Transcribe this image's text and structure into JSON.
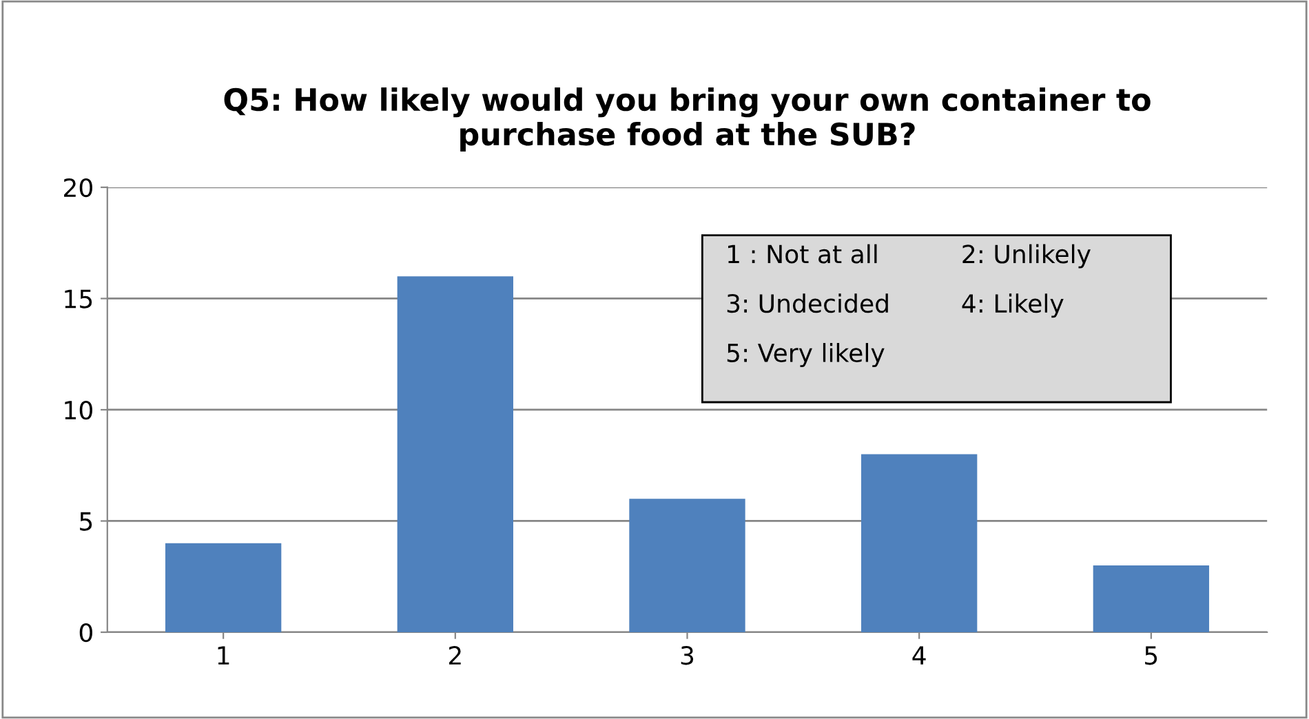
{
  "chart_data": {
    "type": "bar",
    "title": "Q5: How likely would you bring your own container to\npurchase food at the SUB?",
    "categories": [
      "1",
      "2",
      "3",
      "4",
      "5"
    ],
    "values": [
      4,
      16,
      6,
      8,
      3
    ],
    "color": "#4f81bd",
    "ylim": [
      0,
      20
    ],
    "yticks": [
      0,
      5,
      10,
      15,
      20
    ],
    "grid": "y",
    "legend": false,
    "annotations": [
      "1 : Not at all",
      "2: Unlikely",
      "3: Undecided",
      "4: Likely",
      "5: Very likely"
    ]
  }
}
